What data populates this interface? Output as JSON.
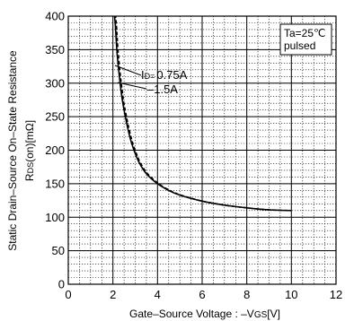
{
  "chart_data": {
    "type": "line",
    "title": "",
    "xlabel": {
      "prefix": "Gate–Source Voltage : –V",
      "sub": "GS",
      "suffix": "[V]"
    },
    "ylabel": {
      "line1": "Static Drain–Source On–State Resistance",
      "prefix": "R",
      "sub": "DS",
      "suffix": "(on)[mΩ]"
    },
    "xlim": [
      0,
      12
    ],
    "ylim": [
      0,
      400
    ],
    "x_ticks": [
      0,
      2,
      4,
      6,
      8,
      10,
      12
    ],
    "y_ticks": [
      0,
      50,
      100,
      150,
      200,
      250,
      300,
      350,
      400
    ],
    "x_minor_step": 0.5,
    "y_minor_step": 10,
    "grid": true,
    "annotation": {
      "line1": "Ta=25℃",
      "line2": "pulsed"
    },
    "series": [
      {
        "name": "0.75A",
        "name_prefix": "I",
        "name_sub": "D=",
        "style": "solid",
        "color": "#000000",
        "x": [
          2.0,
          2.1,
          2.2,
          2.4,
          2.6,
          2.8,
          3.0,
          3.2,
          3.5,
          4.0,
          4.5,
          5.0,
          6.0,
          7.0,
          8.0,
          9.0,
          10.0
        ],
        "y": [
          420,
          390,
          340,
          280,
          243,
          215,
          195,
          180,
          165,
          150,
          140,
          133,
          124,
          118,
          114,
          111,
          110
        ]
      },
      {
        "name": "–1.5A",
        "style": "dashed",
        "color": "#000000",
        "x": [
          2.05,
          2.15,
          2.25,
          2.45,
          2.65,
          2.85,
          3.05,
          3.25,
          3.55,
          4.05,
          4.55,
          5.05,
          6.0,
          7.0,
          8.0,
          9.0,
          10.0
        ],
        "y": [
          420,
          390,
          340,
          280,
          243,
          215,
          195,
          180,
          165,
          150,
          140,
          133,
          124,
          118,
          114,
          111,
          110
        ]
      }
    ]
  }
}
